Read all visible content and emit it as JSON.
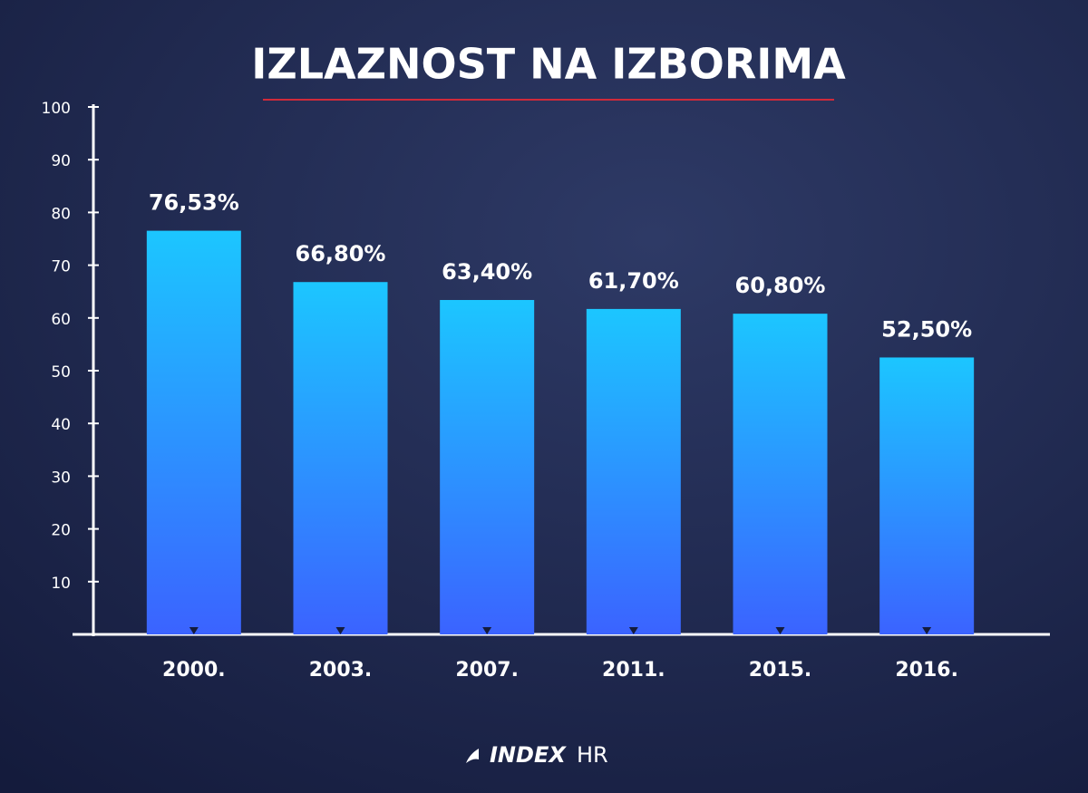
{
  "chart_data": {
    "type": "bar",
    "title": "IZLAZNOST NA IZBORIMA",
    "categories": [
      "2000.",
      "2003.",
      "2007.",
      "2011.",
      "2015.",
      "2016."
    ],
    "values": [
      76.53,
      66.8,
      63.4,
      61.7,
      60.8,
      52.5
    ],
    "value_labels": [
      "76,53%",
      "66,80%",
      "63,40%",
      "61,70%",
      "60,80%",
      "52,50%"
    ],
    "color": "#2a9cff",
    "ylim": [
      0,
      100
    ],
    "yticks": [
      10,
      20,
      30,
      40,
      50,
      60,
      70,
      80,
      90,
      100
    ],
    "grid": false
  },
  "logo": {
    "brand": "INDEX",
    "suffix": "HR"
  }
}
